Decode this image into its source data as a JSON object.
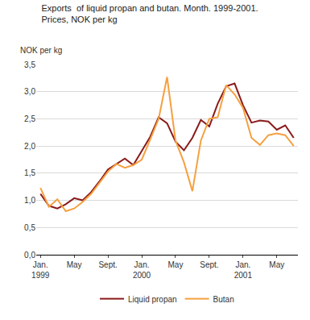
{
  "chart_data": {
    "type": "line",
    "title": "Exports  of liquid propan and butan. Month. 1999-2001.\nPrices, NOK per kg",
    "ylabel": "NOK per kg",
    "categories": [
      "Jan.\n1999",
      null,
      null,
      null,
      "May",
      null,
      null,
      null,
      "Sept.",
      null,
      null,
      null,
      "Jan.\n2000",
      null,
      null,
      null,
      "May",
      null,
      null,
      null,
      "Sept.",
      null,
      null,
      null,
      "Jan.\n2001",
      null,
      null,
      null,
      "May",
      null,
      null
    ],
    "series": [
      {
        "name": "Liquid propan",
        "color": "#8b1a1a",
        "values": [
          1.12,
          0.9,
          0.85,
          0.93,
          1.04,
          1.0,
          1.15,
          1.35,
          1.57,
          1.67,
          1.77,
          1.65,
          1.9,
          2.17,
          2.53,
          2.42,
          2.08,
          1.92,
          2.15,
          2.48,
          2.36,
          2.78,
          3.1,
          3.15,
          2.75,
          2.43,
          2.47,
          2.45,
          2.3,
          2.38,
          2.15
        ]
      },
      {
        "name": "Butan",
        "color": "#f5a040",
        "values": [
          1.23,
          0.88,
          1.02,
          0.8,
          0.85,
          0.97,
          1.12,
          1.33,
          1.53,
          1.67,
          1.6,
          1.65,
          1.75,
          2.12,
          2.5,
          3.27,
          2.1,
          1.7,
          1.17,
          2.1,
          2.5,
          2.53,
          3.12,
          2.95,
          2.7,
          2.15,
          2.02,
          2.2,
          2.23,
          2.2,
          2.0
        ]
      }
    ],
    "ylim": [
      0,
      3.5
    ],
    "yticks": [
      {
        "value": 0,
        "label": "0,0"
      },
      {
        "value": 0.5,
        "label": "0,5"
      },
      {
        "value": 1,
        "label": "1,0"
      },
      {
        "value": 1.5,
        "label": "1,5"
      },
      {
        "value": 2,
        "label": "2,0"
      },
      {
        "value": 2.5,
        "label": "2,5"
      },
      {
        "value": 3,
        "label": "3,0"
      },
      {
        "value": 3.5,
        "label": "3,5"
      }
    ],
    "grid": true,
    "legend": "bottom"
  }
}
